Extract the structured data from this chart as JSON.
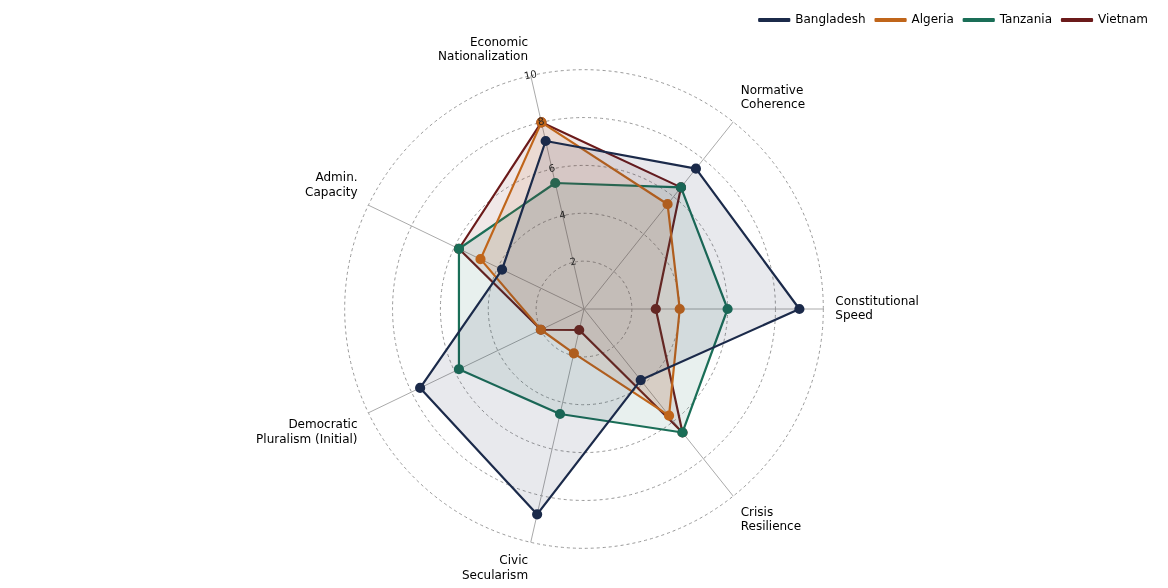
{
  "chart_data": {
    "type": "radar",
    "categories": [
      "Economic\nNationalization",
      "Normative\nCoherence",
      "Constitutional\nSpeed",
      "Crisis\nResilience",
      "Civic\nSecularism",
      "Democratic\nPluralism (Initial)",
      "Admin.\nCapacity"
    ],
    "series": [
      {
        "name": "Bangladesh",
        "color": "#1b2a4a",
        "values": [
          7.2,
          7.5,
          9.0,
          3.8,
          8.8,
          7.6,
          3.8
        ]
      },
      {
        "name": "Algeria",
        "color": "#c0651a",
        "values": [
          8.0,
          5.6,
          4.0,
          5.7,
          1.9,
          2.0,
          4.8
        ]
      },
      {
        "name": "Tanzania",
        "color": "#1a6e57",
        "values": [
          5.4,
          6.5,
          6.0,
          6.6,
          4.5,
          5.8,
          5.8
        ]
      },
      {
        "name": "Vietnam",
        "color": "#6b1a1a",
        "values": [
          8.0,
          6.5,
          3.0,
          6.6,
          0.9,
          2.0,
          5.8
        ]
      }
    ],
    "ylim": [
      0,
      10
    ],
    "yticks": [
      2,
      4,
      6,
      8,
      10
    ],
    "grid": true,
    "legend": "top right",
    "marker": "circle",
    "line_style": "solid"
  }
}
